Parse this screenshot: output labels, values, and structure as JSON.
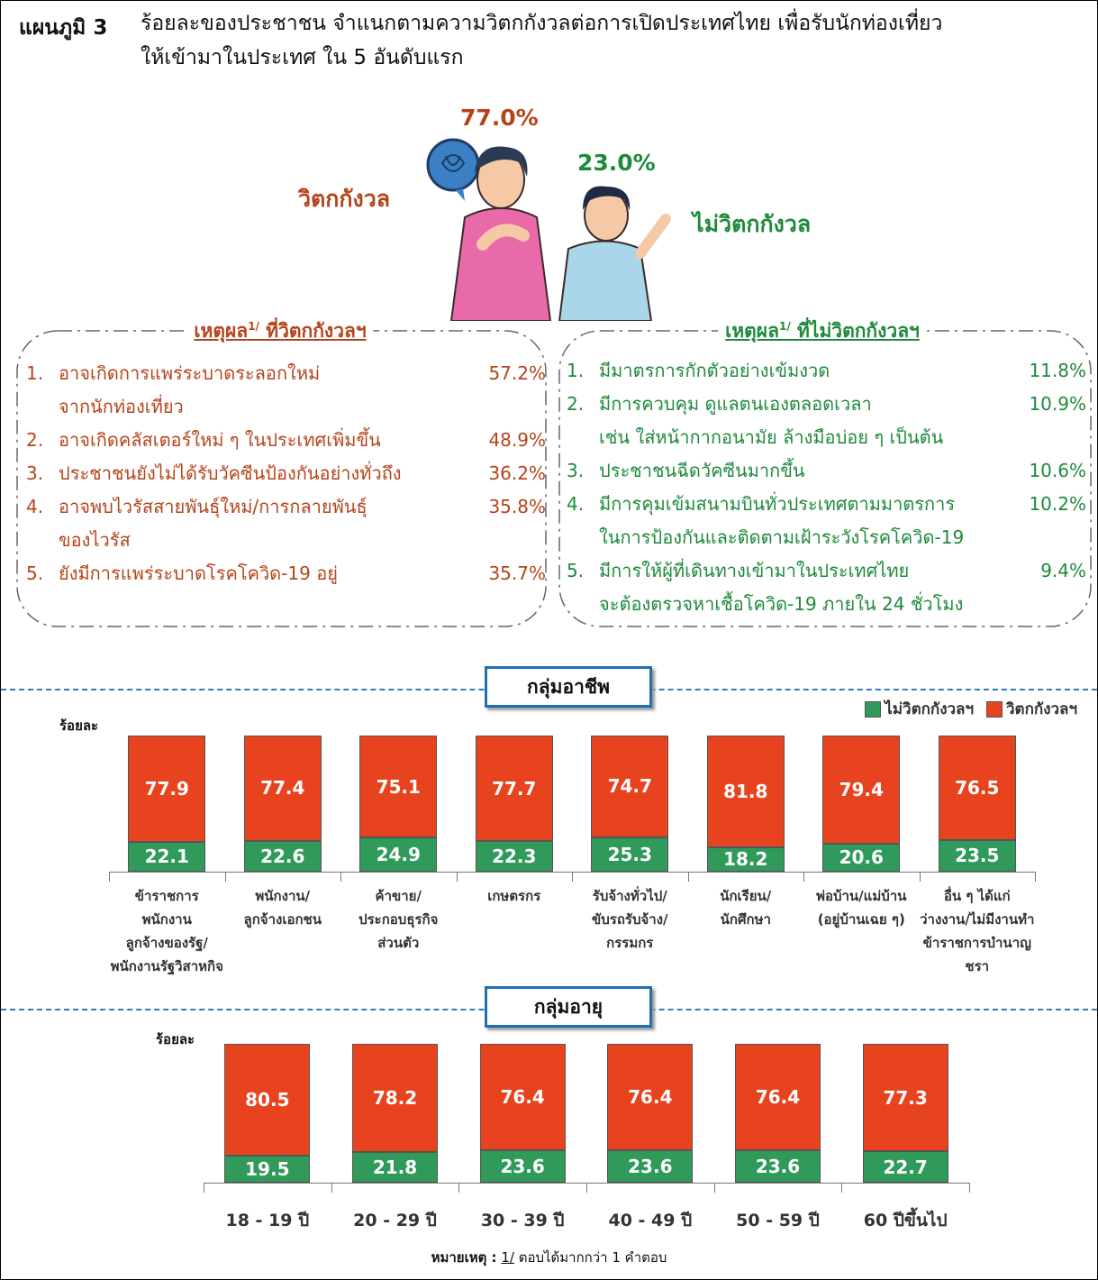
{
  "title": {
    "label": "แผนภูมิ 3",
    "text": "ร้อยละของประชาชน  จำแนกตามความวิตกกังวลต่อการเปิดประเทศไทย เพื่อรับนักท่องเที่ยว\nให้เข้ามาในประเทศ ใน 5 อันดับแรก"
  },
  "summary": {
    "worried": {
      "label": "วิตกกังวล",
      "value": "77.0%"
    },
    "not_worried": {
      "label": "ไม่วิตกกังวล",
      "value": "23.0%"
    }
  },
  "reasons": [
    {
      "title": "เหตุผล",
      "sup": "1/",
      "title_rest": " ที่วิตกกังวลฯ",
      "items": [
        {
          "num": "1.",
          "text": "อาจเกิดการแพร่ระบาดระลอกใหม่\nจากนักท่องเที่ยว",
          "value": "57.2%"
        },
        {
          "num": "2.",
          "text": "อาจเกิดคลัสเตอร์ใหม่ ๆ ในประเทศเพิ่มขึ้น",
          "value": "48.9%"
        },
        {
          "num": "3.",
          "text": "ประชาชนยังไม่ได้รับวัคซีนป้องกันอย่างทั่วถึง",
          "value": "36.2%"
        },
        {
          "num": "4.",
          "text": "อาจพบไวรัสสายพันธุ์ใหม่/การกลายพันธุ์\nของไวรัส",
          "value": "35.8%"
        },
        {
          "num": "5.",
          "text": "ยังมีการแพร่ระบาดโรคโควิด-19 อยู่",
          "value": "35.7%"
        }
      ]
    },
    {
      "title": "เหตุผล",
      "sup": "1/",
      "title_rest": " ที่ไม่วิตกกังวลฯ",
      "items": [
        {
          "num": "1.",
          "text": "มีมาตรการกักตัวอย่างเข้มงวด",
          "value": "11.8%"
        },
        {
          "num": "2.",
          "text": "มีการควบคุม ดูแลตนเองตลอดเวลา\nเช่น ใส่หน้ากากอนามัย ล้างมือบ่อย ๆ เป็นต้น",
          "value": "10.9%"
        },
        {
          "num": "3.",
          "text": "ประชาชนฉีดวัคซีนมากขึ้น",
          "value": "10.6%"
        },
        {
          "num": "4.",
          "text": "มีการคุมเข้มสนามบินทั่วประเทศตามมาตรการ\nในการป้องกันและติดตามเฝ้าระวังโรคโควิด-19",
          "value": "10.2%"
        },
        {
          "num": "5.",
          "text": "มีการให้ผู้ที่เดินทางเข้ามาในประเทศไทย\nจะต้องตรวจหาเชื้อโควิด-19 ภายใน 24 ชั่วโมง",
          "value": "9.4%"
        }
      ]
    }
  ],
  "chart_data": [
    {
      "type": "bar",
      "stacked": true,
      "title": "กลุ่มอาชีพ",
      "y_label": "ร้อยละ",
      "legend": "upper right",
      "categories": [
        "ข้าราชการ\nพนักงาน\nลูกจ้างของรัฐ/\nพนักงานรัฐวิสาหกิจ",
        "พนักงาน/\nลูกจ้างเอกชน",
        "ค้าขาย/\nประกอบธุรกิจ\nส่วนตัว",
        "เกษตรกร",
        "รับจ้างทั่วไป/\nขับรถรับจ้าง/\nกรรมกร",
        "นักเรียน/\nนักศึกษา",
        "พ่อบ้าน/แม่บ้าน\n(อยู่บ้านเฉย ๆ)",
        "อื่น ๆ ได้แก่\nว่างงาน/ไม่มีงานทำ\nข้าราชการบำนาญ\nชรา"
      ],
      "series": [
        {
          "name": "ไม่วิตกกังวลฯ",
          "color": "#2f9a5a",
          "values": [
            22.1,
            22.6,
            24.9,
            22.3,
            25.3,
            18.2,
            20.6,
            23.5
          ]
        },
        {
          "name": "วิตกกังวลฯ",
          "color": "#e8431f",
          "values": [
            77.9,
            77.4,
            75.1,
            77.7,
            74.7,
            81.8,
            79.4,
            76.5
          ]
        }
      ],
      "ylim": [
        0,
        100
      ]
    },
    {
      "type": "bar",
      "stacked": true,
      "title": "กลุ่มอายุ",
      "y_label": "ร้อยละ",
      "categories": [
        "18 - 19 ปี",
        "20 - 29 ปี",
        "30 - 39 ปี",
        "40 - 49 ปี",
        "50 - 59 ปี",
        "60 ปีขึ้นไป"
      ],
      "series": [
        {
          "color": "#2f9a5a",
          "values": [
            19.5,
            21.8,
            23.6,
            23.6,
            23.6,
            22.7
          ]
        },
        {
          "color": "#e8431f",
          "values": [
            80.5,
            78.2,
            76.4,
            76.4,
            76.4,
            77.3
          ]
        }
      ],
      "ylim": [
        0,
        100
      ]
    }
  ],
  "note": {
    "label": "หมายเหตุ :",
    "ref": "1/",
    "text": " ตอบได้มากกว่า 1 คำตอบ"
  }
}
